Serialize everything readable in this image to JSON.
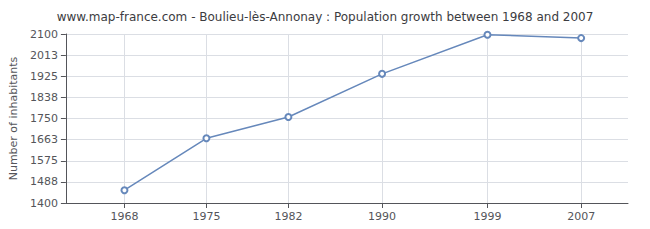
{
  "chart_data": {
    "type": "line",
    "title": "www.map-france.com - Boulieu-lès-Annonay : Population growth between 1968 and 2007",
    "ylabel": "Number of inhabitants",
    "x": [
      1968,
      1975,
      1982,
      1990,
      1999,
      2007
    ],
    "values": [
      1453,
      1668,
      1756,
      1935,
      2097,
      2083
    ],
    "xlim": [
      1963,
      2011
    ],
    "ylim": [
      1400,
      2100
    ],
    "xticks": [
      1968,
      1975,
      1982,
      1990,
      1999,
      2007
    ],
    "yticks": [
      1400,
      1488,
      1575,
      1663,
      1750,
      1838,
      1925,
      2013,
      2100
    ],
    "grid": true,
    "color": "#6688bb",
    "marker": "circle"
  }
}
